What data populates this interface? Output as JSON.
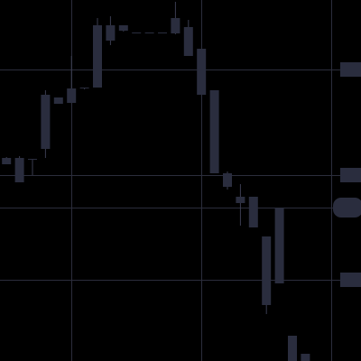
{
  "theme": {
    "background": "#000000",
    "grid_color": "#2b2d3c",
    "candle_color": "#2a2d3e",
    "wick_color": "#3a3d50",
    "badge_color": "#2a2d3e"
  },
  "chart_data": {
    "type": "candlestick",
    "title": "",
    "xlabel": "",
    "ylabel": "",
    "grid": true,
    "price_axis_side": "right",
    "ylim": [
      0,
      400
    ],
    "x_range": [
      0,
      26
    ],
    "price_axis_x": 25.5,
    "vertical_gridlines_at": [
      5.5,
      15.5,
      25.5
    ],
    "horizontal_gridlines_at": [
      323,
      206,
      170,
      90
    ],
    "price_badges": [
      {
        "level": 323,
        "shape": "rect"
      },
      {
        "level": 206,
        "shape": "rect"
      },
      {
        "level": 170,
        "shape": "pill"
      },
      {
        "level": 90,
        "shape": "rect"
      }
    ],
    "candles": [
      {
        "x": 0.5,
        "open": 225,
        "high": 226,
        "low": 218,
        "close": 218
      },
      {
        "x": 1.5,
        "open": 225,
        "high": 227,
        "low": 198,
        "close": 198
      },
      {
        "x": 2.5,
        "open": 224,
        "high": 224,
        "low": 206,
        "close": 224
      },
      {
        "x": 3.5,
        "open": 235,
        "high": 300,
        "low": 225,
        "close": 295
      },
      {
        "x": 4.5,
        "open": 292,
        "high": 292,
        "low": 285,
        "close": 285
      },
      {
        "x": 5.5,
        "open": 286,
        "high": 338,
        "low": 286,
        "close": 302
      },
      {
        "x": 6.5,
        "open": 302,
        "high": 303,
        "low": 301,
        "close": 303
      },
      {
        "x": 7.5,
        "open": 303,
        "high": 380,
        "low": 303,
        "close": 372
      },
      {
        "x": 8.5,
        "open": 355,
        "high": 382,
        "low": 350,
        "close": 372
      },
      {
        "x": 9.5,
        "open": 372,
        "high": 372,
        "low": 365,
        "close": 366
      },
      {
        "x": 10.5,
        "open": 364,
        "high": 364,
        "low": 363,
        "close": 363
      },
      {
        "x": 11.5,
        "open": 364,
        "high": 364,
        "low": 363,
        "close": 363
      },
      {
        "x": 12.5,
        "open": 364,
        "high": 364,
        "low": 363,
        "close": 363
      },
      {
        "x": 13.5,
        "open": 363,
        "high": 398,
        "low": 362,
        "close": 380
      },
      {
        "x": 14.5,
        "open": 370,
        "high": 378,
        "low": 338,
        "close": 338
      },
      {
        "x": 15.5,
        "open": 346,
        "high": 346,
        "low": 295,
        "close": 295
      },
      {
        "x": 16.5,
        "open": 300,
        "high": 300,
        "low": 208,
        "close": 208
      },
      {
        "x": 17.5,
        "open": 208,
        "high": 210,
        "low": 190,
        "close": 193
      },
      {
        "x": 18.5,
        "open": 182,
        "high": 196,
        "low": 150,
        "close": 175
      },
      {
        "x": 19.5,
        "open": 182,
        "high": 182,
        "low": 148,
        "close": 148
      },
      {
        "x": 20.5,
        "open": 138,
        "high": 138,
        "low": 52,
        "close": 62
      },
      {
        "x": 21.5,
        "open": 86,
        "high": 170,
        "low": 86,
        "close": 170
      },
      {
        "x": 22.5,
        "open": 28,
        "high": 28,
        "low": 0,
        "close": 0
      },
      {
        "x": 23.5,
        "open": 8,
        "high": 8,
        "low": 0,
        "close": 0
      }
    ]
  }
}
